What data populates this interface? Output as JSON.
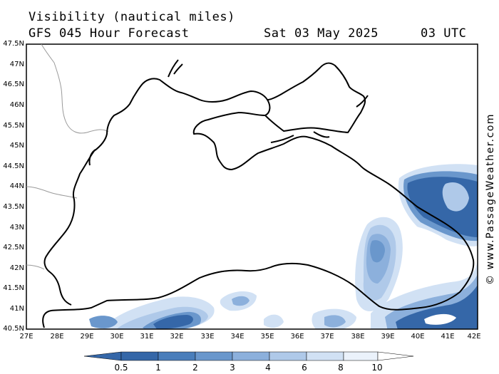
{
  "header": {
    "title": "Visibility (nautical miles)",
    "model": "GFS 045 Hour Forecast",
    "date": "Sat 03 May 2025",
    "time": "03 UTC"
  },
  "credit": "© www.PassageWeather.com",
  "axes": {
    "lat_labels": [
      "47.5N",
      "47N",
      "46.5N",
      "46N",
      "45.5N",
      "45N",
      "44.5N",
      "44N",
      "43.5N",
      "43N",
      "42.5N",
      "42N",
      "41.5N",
      "41N",
      "40.5N"
    ],
    "lon_labels": [
      "27E",
      "28E",
      "29E",
      "30E",
      "31E",
      "32E",
      "33E",
      "34E",
      "35E",
      "36E",
      "37E",
      "38E",
      "39E",
      "40E",
      "41E",
      "42E"
    ]
  },
  "colorbar": {
    "labels": [
      "0.5",
      "1",
      "2",
      "3",
      "4",
      "6",
      "8",
      "10"
    ],
    "colors": [
      "#3567a8",
      "#4a7ebb",
      "#6a97cc",
      "#8cb0dc",
      "#afc9e9",
      "#d1e1f4",
      "#ebf2fb",
      "#ffffff"
    ]
  },
  "map": {
    "region": "Black Sea",
    "lon_range": [
      27,
      42
    ],
    "lat_range": [
      40.5,
      47.5
    ]
  }
}
